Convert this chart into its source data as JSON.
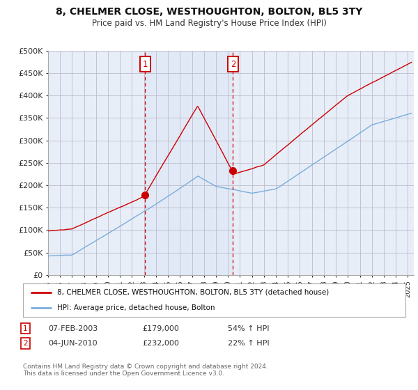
{
  "title": "8, CHELMER CLOSE, WESTHOUGHTON, BOLTON, BL5 3TY",
  "subtitle": "Price paid vs. HM Land Registry's House Price Index (HPI)",
  "ylabel_ticks": [
    "£0",
    "£50K",
    "£100K",
    "£150K",
    "£200K",
    "£250K",
    "£300K",
    "£350K",
    "£400K",
    "£450K",
    "£500K"
  ],
  "ylim": [
    0,
    500000
  ],
  "xlim_start": 1995.0,
  "xlim_end": 2025.5,
  "purchase1_x": 2003.1,
  "purchase1_y": 179000,
  "purchase1_label": "1",
  "purchase2_x": 2010.42,
  "purchase2_y": 232000,
  "purchase2_label": "2",
  "legend_line1": "8, CHELMER CLOSE, WESTHOUGHTON, BOLTON, BL5 3TY (detached house)",
  "legend_line2": "HPI: Average price, detached house, Bolton",
  "footer": "Contains HM Land Registry data © Crown copyright and database right 2024.\nThis data is licensed under the Open Government Licence v3.0.",
  "red_color": "#cc0000",
  "blue_color": "#7aaddb",
  "background_color": "#e8eef8",
  "grid_color": "#bbbbcc",
  "vline_color": "#cc0000"
}
